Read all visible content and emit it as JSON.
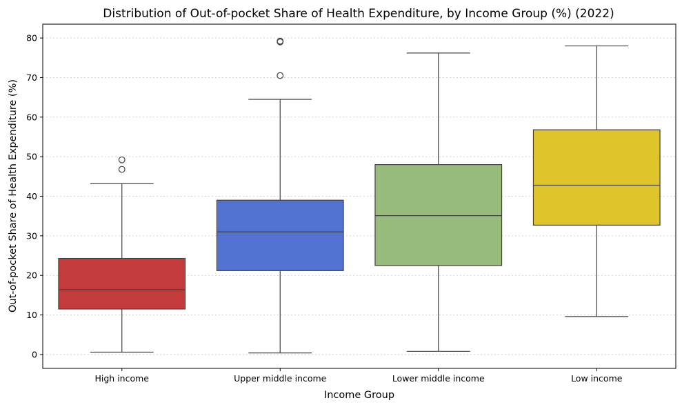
{
  "chart_data": {
    "type": "box",
    "title": "Distribution of Out-of-pocket Share of Health Expenditure, by Income Group (%) (2022)",
    "xlabel": "Income Group",
    "ylabel": "Out-of-pocket Share of Health Expenditure (%)",
    "ylim": [
      -3.5,
      83.5
    ],
    "yticks": [
      0,
      10,
      20,
      30,
      40,
      50,
      60,
      70,
      80
    ],
    "grid": "y-dotted",
    "categories": [
      "High income",
      "Upper middle income",
      "Lower middle income",
      "Low income"
    ],
    "boxes": [
      {
        "category": "High income",
        "color": "#c33b3b",
        "whisker_low": 0.6,
        "q1": 11.5,
        "median": 16.4,
        "q3": 24.3,
        "whisker_high": 43.2,
        "outliers": [
          46.8,
          49.2
        ]
      },
      {
        "category": "Upper middle income",
        "color": "#5273d1",
        "whisker_low": 0.4,
        "q1": 21.2,
        "median": 31.0,
        "q3": 39.0,
        "whisker_high": 64.5,
        "outliers": [
          70.5,
          79.0,
          79.2
        ]
      },
      {
        "category": "Lower middle income",
        "color": "#96bb7b",
        "whisker_low": 0.8,
        "q1": 22.5,
        "median": 35.1,
        "q3": 48.0,
        "whisker_high": 76.2,
        "outliers": []
      },
      {
        "category": "Low income",
        "color": "#e0c42b",
        "whisker_low": 9.6,
        "q1": 32.7,
        "median": 42.8,
        "q3": 56.8,
        "whisker_high": 78.0,
        "outliers": []
      }
    ]
  }
}
